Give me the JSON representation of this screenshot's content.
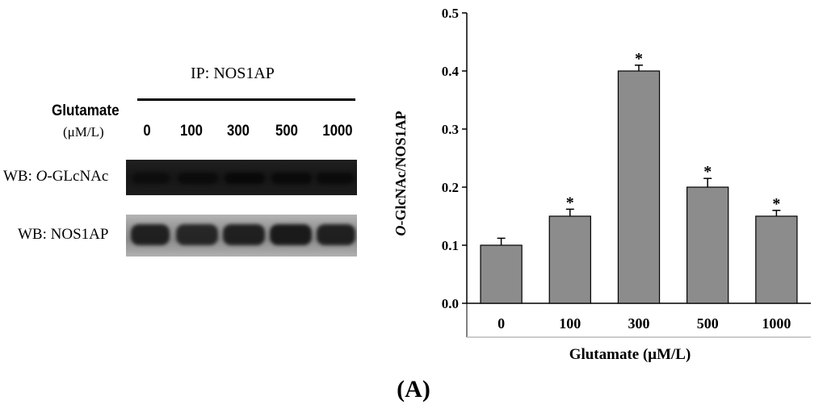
{
  "western_blot": {
    "ip_label": "IP: NOS1AP",
    "treatment_label": "Glutamate",
    "unit_label": "(μM/L)",
    "lanes": [
      "0",
      "100",
      "300",
      "500",
      "1000"
    ],
    "rows": [
      {
        "prefix": "WB: ",
        "italic": "O",
        "suffix": "-GLcNAc",
        "band_intensity": [
          0.55,
          0.65,
          0.8,
          0.75,
          0.7
        ]
      },
      {
        "prefix": "WB: ",
        "italic": "",
        "suffix": "NOS1AP",
        "band_intensity": [
          0.9,
          0.85,
          0.9,
          0.95,
          0.9
        ]
      }
    ]
  },
  "chart_data": {
    "type": "bar",
    "categories": [
      "0",
      "100",
      "300",
      "500",
      "1000"
    ],
    "values": [
      0.1,
      0.15,
      0.4,
      0.2,
      0.15
    ],
    "errors": [
      0.012,
      0.012,
      0.01,
      0.015,
      0.01
    ],
    "significance": [
      "",
      "*",
      "*",
      "*",
      "*"
    ],
    "title": "",
    "xlabel": "Glutamate (μM/L)",
    "ylabel": "O-GlcNAc/NOS1AP",
    "ylabel_italic": "O",
    "ylabel_rest": "-GlcNAc/NOS1AP",
    "ylim": [
      0,
      0.5
    ],
    "yticks": [
      "0.0",
      "0.1",
      "0.2",
      "0.3",
      "0.4",
      "0.5"
    ],
    "bar_color": "#8c8c8c"
  },
  "panel_label": {
    "open": "(",
    "letter": "A",
    "close": ")"
  }
}
